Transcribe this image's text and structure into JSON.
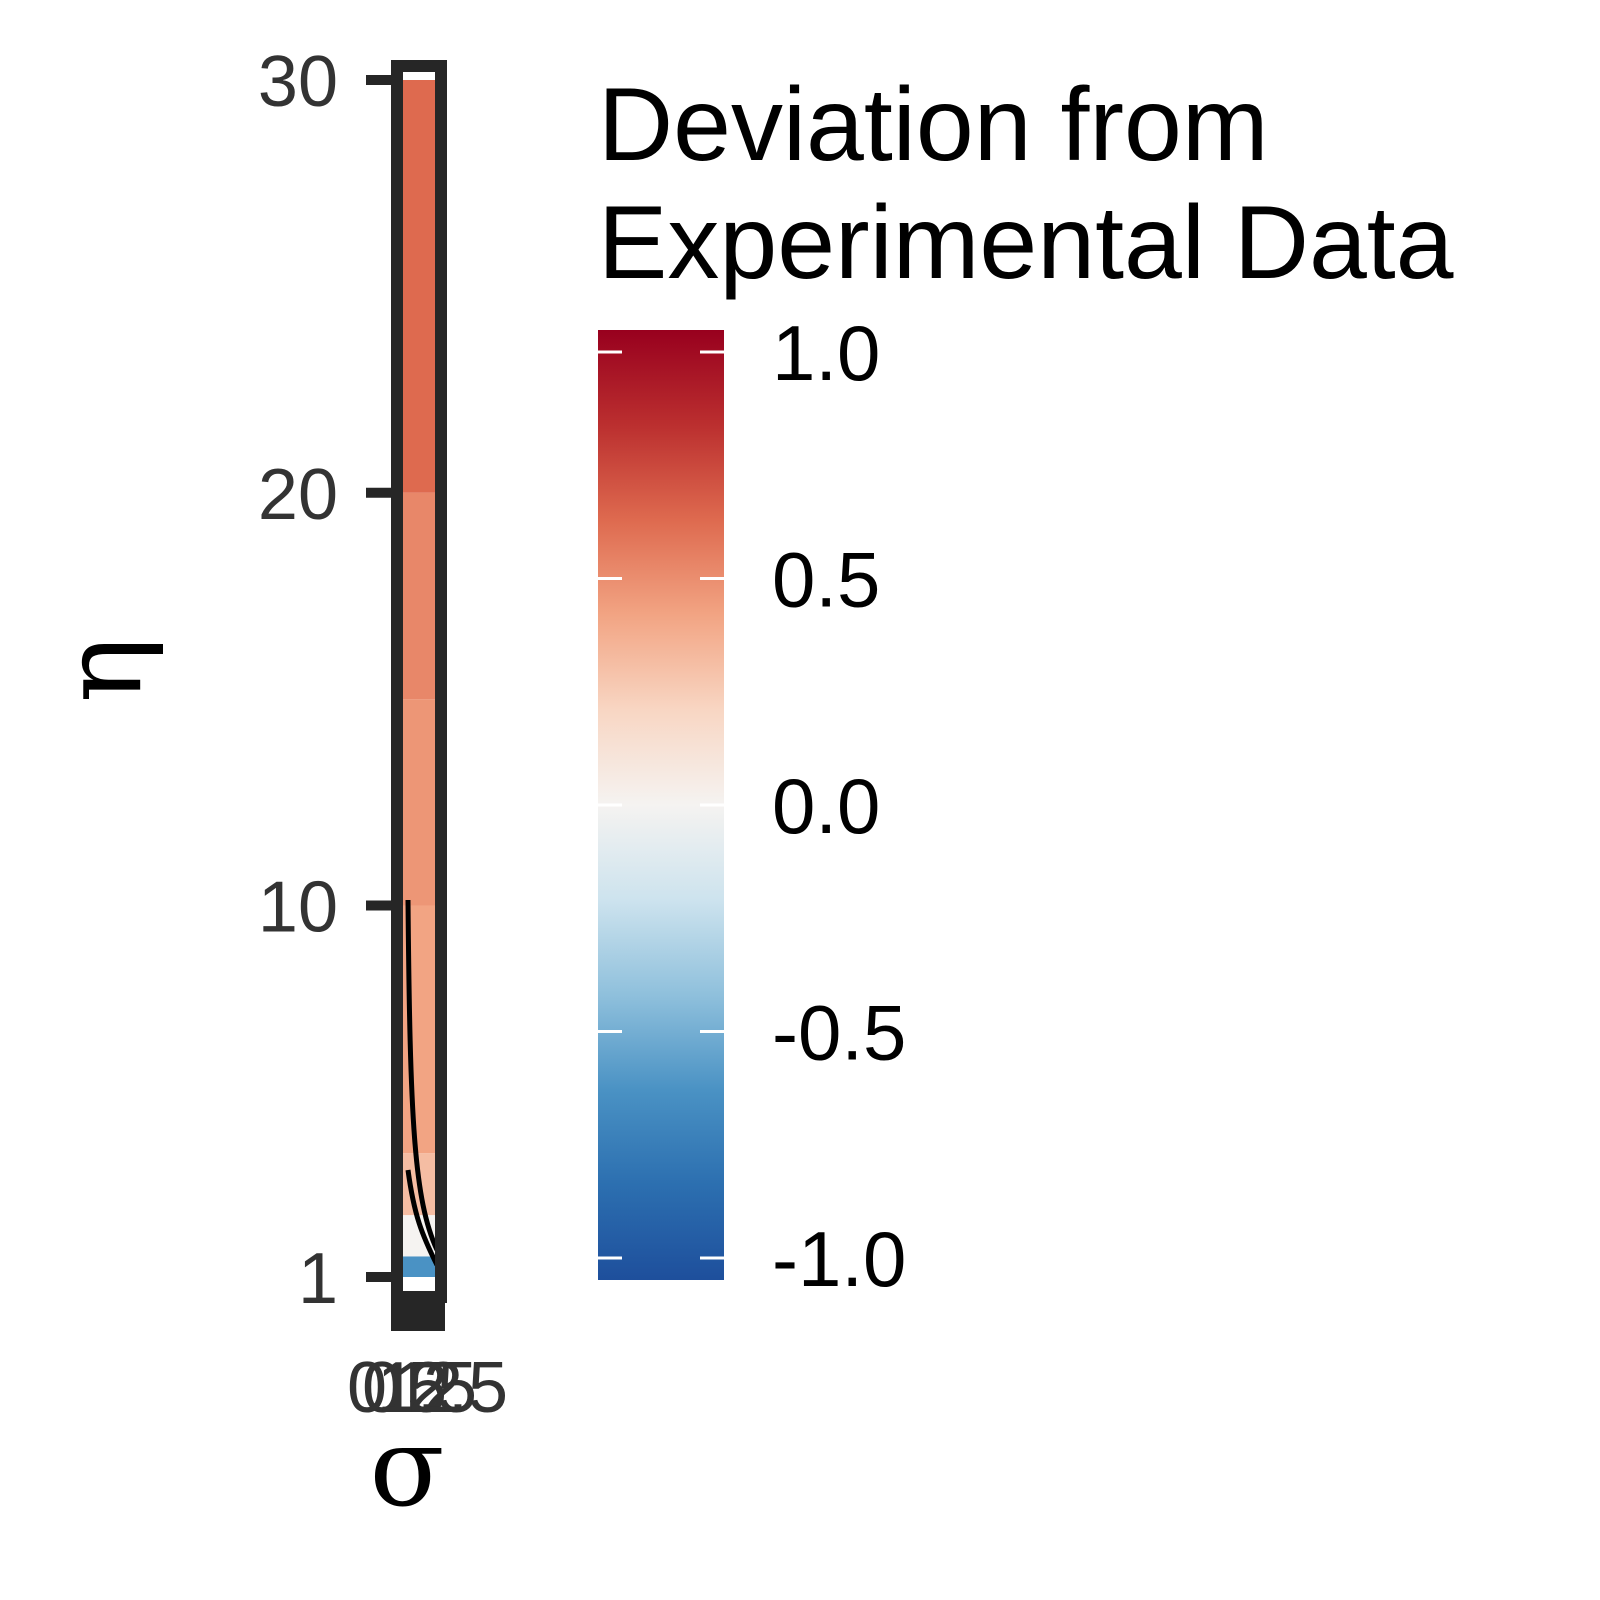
{
  "chart_data": {
    "type": "heatmap",
    "title": "",
    "xlabel": "σ",
    "ylabel": "η",
    "x_ticks": [
      "0",
      "0.5",
      "1",
      "1.5",
      "2",
      "2.5"
    ],
    "y_ticks": [
      1,
      10,
      20,
      30
    ],
    "ylim": [
      1,
      30
    ],
    "series": [
      {
        "bands": [
          {
            "y_from": 1,
            "y_to": 1.5,
            "value": -0.6
          },
          {
            "y_from": 1.5,
            "y_to": 2.5,
            "value": 0.0
          },
          {
            "y_from": 2.5,
            "y_to": 4,
            "value": 0.3
          },
          {
            "y_from": 4,
            "y_to": 10,
            "value": 0.4
          },
          {
            "y_from": 10,
            "y_to": 15,
            "value": 0.45
          },
          {
            "y_from": 15,
            "y_to": 20,
            "value": 0.5
          },
          {
            "y_from": 20,
            "y_to": 30,
            "value": 0.6
          }
        ]
      }
    ],
    "colorbar": {
      "title_lines": [
        "Deviation from",
        "Experimental Data"
      ],
      "ticks": [
        "1.0",
        "0.5",
        "0.0",
        "-0.5",
        "-1.0"
      ],
      "range": [
        -1,
        1
      ],
      "colors": [
        "#1e4f9c",
        "#2c6fb0",
        "#4a92c4",
        "#8fc0dc",
        "#cde3ee",
        "#f5f3f1",
        "#f8d6c3",
        "#f2a483",
        "#de6a4f",
        "#bb2f2f",
        "#98001e"
      ]
    },
    "frame_color": "#262626"
  }
}
